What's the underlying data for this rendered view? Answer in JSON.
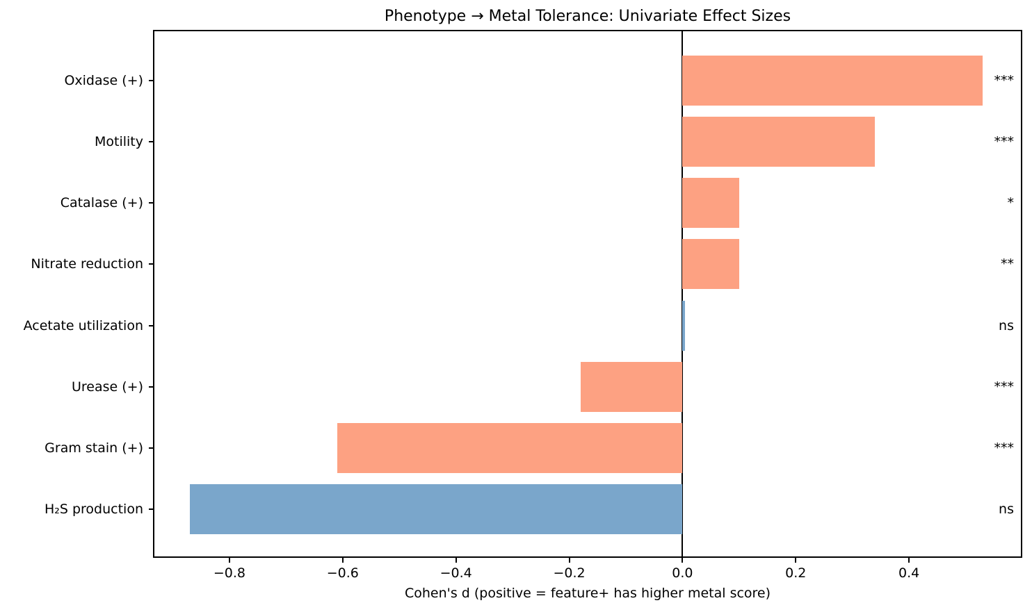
{
  "chart_data": {
    "type": "bar",
    "orientation": "horizontal",
    "title": "Phenotype → Metal Tolerance: Univariate Effect Sizes",
    "xlabel": "Cohen's d (positive = feature+ has higher metal score)",
    "categories": [
      "Oxidase (+)",
      "Motility",
      "Catalase (+)",
      "Nitrate reduction",
      "Acetate utilization",
      "Urease (+)",
      "Gram stain (+)",
      "H₂S production"
    ],
    "values": [
      0.53,
      0.34,
      0.1,
      0.1,
      0.005,
      -0.18,
      -0.61,
      -0.87
    ],
    "significance": [
      "***",
      "***",
      "*",
      "**",
      "ns",
      "***",
      "***",
      "ns"
    ],
    "bar_colors": [
      "orange",
      "orange",
      "orange",
      "orange",
      "blue",
      "orange",
      "orange",
      "blue"
    ],
    "palette": {
      "orange": "#FDA182",
      "blue": "#7AA6CB"
    },
    "axis_color": "#000000",
    "xlim": [
      -0.935,
      0.6
    ],
    "xticks": [
      -0.8,
      -0.6,
      -0.4,
      -0.2,
      0.0,
      0.2,
      0.4
    ],
    "xtick_labels": [
      "−0.8",
      "−0.6",
      "−0.4",
      "−0.2",
      "0.0",
      "0.2",
      "0.4"
    ],
    "grid": false,
    "zero_line": true,
    "legend": "none"
  }
}
